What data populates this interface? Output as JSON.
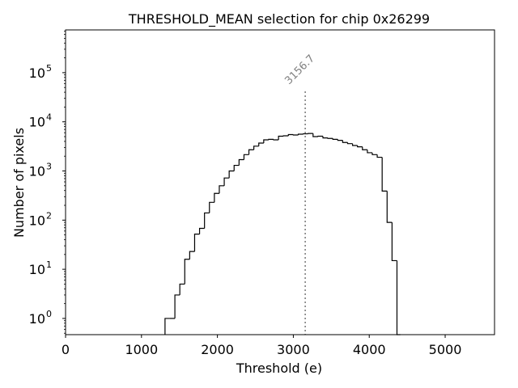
{
  "chart_data": {
    "type": "histogram",
    "title": "THRESHOLD_MEAN selection for chip 0x26299",
    "xlabel": "Threshold (e)",
    "ylabel": "Number of pixels",
    "xlim": [
      0,
      5650
    ],
    "ylim_log10": [
      -0.33,
      5.87
    ],
    "yscale": "log",
    "x_ticks": [
      0,
      1000,
      2000,
      3000,
      4000,
      5000
    ],
    "x_tick_labels": [
      "0",
      "1000",
      "2000",
      "3000",
      "4000",
      "5000"
    ],
    "y_ticks_exp": [
      0,
      1,
      2,
      3,
      4,
      5
    ],
    "y_tick_base": "10",
    "y_tick_exponents": [
      "0",
      "1",
      "2",
      "3",
      "4",
      "5"
    ],
    "bin_edges": [
      1310,
      1375,
      1440,
      1505,
      1570,
      1635,
      1700,
      1765,
      1830,
      1895,
      1960,
      2025,
      2090,
      2155,
      2220,
      2285,
      2350,
      2415,
      2480,
      2545,
      2610,
      2675,
      2740,
      2805,
      2870,
      2935,
      3000,
      3065,
      3130,
      3195,
      3260,
      3325,
      3390,
      3455,
      3520,
      3585,
      3650,
      3715,
      3780,
      3845,
      3910,
      3975,
      4040,
      4105,
      4170,
      4235,
      4300,
      4365,
      4410
    ],
    "counts": [
      1,
      1,
      3,
      5,
      16,
      23,
      52,
      68,
      140,
      230,
      350,
      500,
      720,
      1000,
      1300,
      1700,
      2150,
      2700,
      3200,
      3700,
      4300,
      4400,
      4300,
      5100,
      5200,
      5500,
      5400,
      5600,
      5700,
      5800,
      5000,
      5100,
      4700,
      4600,
      4400,
      4200,
      3800,
      3600,
      3300,
      3100,
      2700,
      2350,
      2150,
      1900,
      390,
      90,
      15,
      0
    ],
    "marker": {
      "x": 3156.7,
      "label": "3156.7",
      "style": "dotted",
      "color": "#808080"
    },
    "line_color": "#000000"
  }
}
